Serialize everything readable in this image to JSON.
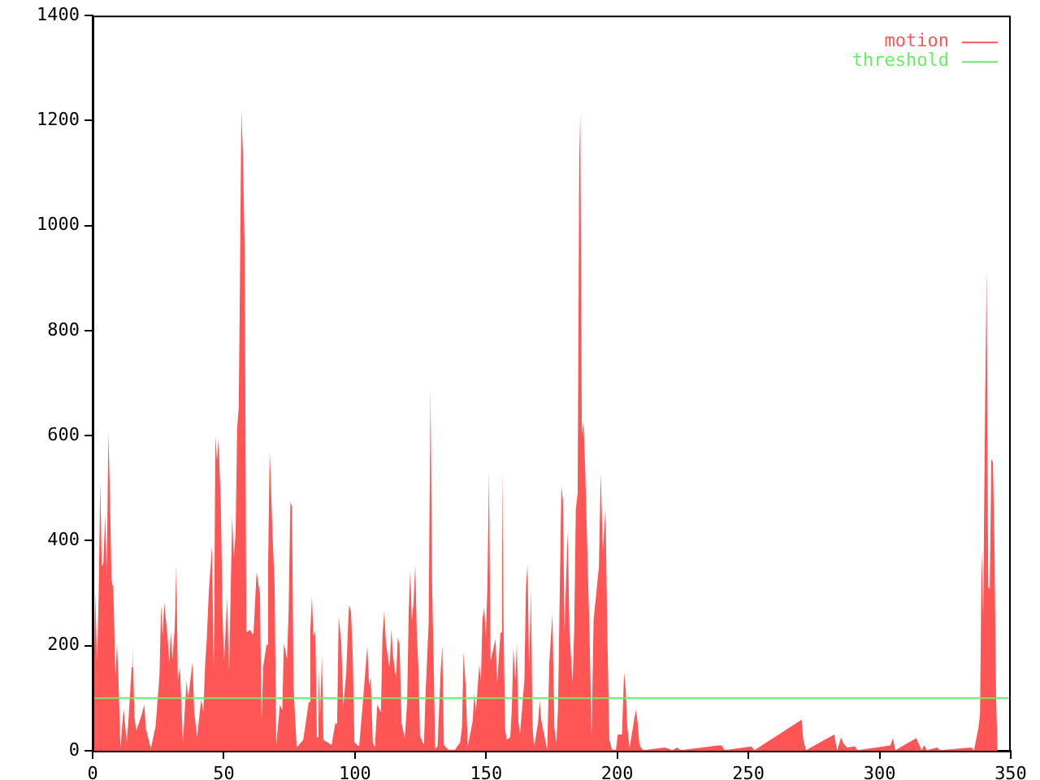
{
  "chart_data": {
    "type": "area",
    "xlim": [
      0,
      350
    ],
    "xticks": [
      0,
      50,
      100,
      150,
      200,
      250,
      300,
      350
    ],
    "ylim": [
      0,
      1400
    ],
    "yticks": [
      0,
      200,
      400,
      600,
      800,
      1000,
      1200,
      1400
    ],
    "grid": false,
    "legend": "top right",
    "marker": "none",
    "series": [
      {
        "name": "motion",
        "color": "#ff5555",
        "x": [
          0,
          1.0,
          1.7,
          2.3,
          2.9,
          3.5,
          4.1,
          4.8,
          5.4,
          6.0,
          6.6,
          7.2,
          7.9,
          8.7,
          9.3,
          9.9,
          10.6,
          11.8,
          13.0,
          13.7,
          14.9,
          15.3,
          15.9,
          16.6,
          18.6,
          19.7,
          20.3,
          22.2,
          24.0,
          25.5,
          26.1,
          26.7,
          27.3,
          28.6,
          29.2,
          29.8,
          30.4,
          31.3,
          31.9,
          32.5,
          33.3,
          34.4,
          35.8,
          36.4,
          38.1,
          38.7,
          39.8,
          41.4,
          42.2,
          42.9,
          43.5,
          44.3,
          45.5,
          46.2,
          46.8,
          47.4,
          48.0,
          48.9,
          49.5,
          50.1,
          51.3,
          52.0,
          53.2,
          53.8,
          54.5,
          55.1,
          55.7,
          56.1,
          56.7,
          57.3,
          58.0,
          58.6,
          60.0,
          61.3,
          62.5,
          63.8,
          64.4,
          65.0,
          66.3,
          66.9,
          67.5,
          68.7,
          69.4,
          70.0,
          71.4,
          72.3,
          72.9,
          74.1,
          74.7,
          75.4,
          76.0,
          76.6,
          77.8,
          80.3,
          82.4,
          83.0,
          83.6,
          84.2,
          84.9,
          85.5,
          86.1,
          86.7,
          87.4,
          88.0,
          91.1,
          92.5,
          93.2,
          93.8,
          94.8,
          95.6,
          96.7,
          97.7,
          98.5,
          99.2,
          99.8,
          101.6,
          102.9,
          104.1,
          104.7,
          105.4,
          106.0,
          106.8,
          107.6,
          108.5,
          109.9,
          110.5,
          111.2,
          111.8,
          113.2,
          113.9,
          114.5,
          115.7,
          116.3,
          117.0,
          117.8,
          119.0,
          119.9,
          120.5,
          121.1,
          121.7,
          122.3,
          123.0,
          123.6,
          124.2,
          124.8,
          126.3,
          126.9,
          128.1,
          128.8,
          129.4,
          130.0,
          130.6,
          131.5,
          132.7,
          133.3,
          133.9,
          135.6,
          138.1,
          140.1,
          140.8,
          141.4,
          142.2,
          143.0,
          144.9,
          145.5,
          146.1,
          147.4,
          148.0,
          148.6,
          149.3,
          149.9,
          150.5,
          151.1,
          151.7,
          153.6,
          154.2,
          155.5,
          156.1,
          156.7,
          157.3,
          157.9,
          159.2,
          159.8,
          160.4,
          161.1,
          161.7,
          162.3,
          162.9,
          164.6,
          165.2,
          165.8,
          166.4,
          167.1,
          167.7,
          168.3,
          169.8,
          170.4,
          171.0,
          173.3,
          174.1,
          175.3,
          176.0,
          176.8,
          177.4,
          178.0,
          178.7,
          179.3,
          179.9,
          180.5,
          181.1,
          181.8,
          183.0,
          183.6,
          184.2,
          184.9,
          185.5,
          185.9,
          186.5,
          187.1,
          187.8,
          188.5,
          189.4,
          190.2,
          191.0,
          192.0,
          193.0,
          193.7,
          194.5,
          195.5,
          196.3,
          197.0,
          198.0,
          199.5,
          200.2,
          201.8,
          202.6,
          203.2,
          203.8,
          204.7,
          205.9,
          206.5,
          207.2,
          207.8,
          208.4,
          209.0,
          209.9,
          218.1,
          221.2,
          222.7,
          224.3,
          238.4,
          239.9,
          240.9,
          251.1,
          252.3,
          270.3,
          270.9,
          272.0,
          282.7,
          283.8,
          285.4,
          286.0,
          287.5,
          290.6,
          291.6,
          304.1,
          305.1,
          306.0,
          314.0,
          316.0,
          317.0,
          318.0,
          322.0,
          323.0,
          335.0,
          336.0,
          337.7,
          338.3,
          338.9,
          339.5,
          340.1,
          340.8,
          341.4,
          342.0,
          342.6,
          343.2,
          343.8,
          344.4,
          345.0
        ],
        "values": [
          0,
          303,
          165,
          298,
          511,
          349,
          358,
          450,
          330,
          606,
          492,
          325,
          309,
          144,
          205,
          128,
          6,
          80,
          16,
          62,
          159,
          200,
          67,
          37,
          67,
          88,
          42,
          4,
          47,
          144,
          277,
          219,
          282,
          215,
          169,
          225,
          174,
          232,
          354,
          134,
          159,
          16,
          134,
          98,
          169,
          77,
          26,
          98,
          73,
          165,
          211,
          303,
          390,
          144,
          600,
          552,
          594,
          463,
          266,
          169,
          292,
          144,
          447,
          367,
          414,
          614,
          654,
          861,
          1219,
          1137,
          944,
          225,
          230,
          220,
          340,
          299,
          57,
          159,
          202,
          352,
          571,
          399,
          313,
          11,
          88,
          77,
          205,
          174,
          261,
          475,
          463,
          120,
          6,
          21,
          93,
          229,
          294,
          217,
          229,
          26,
          159,
          67,
          181,
          21,
          11,
          52,
          52,
          256,
          205,
          85,
          150,
          277,
          265,
          174,
          16,
          8,
          85,
          161,
          200,
          125,
          140,
          16,
          6,
          88,
          73,
          219,
          266,
          205,
          157,
          232,
          181,
          138,
          215,
          203,
          52,
          24,
          93,
          266,
          343,
          246,
          279,
          354,
          219,
          159,
          28,
          11,
          105,
          244,
          692,
          321,
          169,
          4,
          8,
          154,
          200,
          11,
          2,
          2,
          16,
          45,
          187,
          125,
          8,
          57,
          110,
          73,
          164,
          130,
          251,
          272,
          215,
          313,
          532,
          171,
          213,
          128,
          225,
          540,
          220,
          39,
          21,
          26,
          78,
          197,
          134,
          205,
          57,
          31,
          134,
          313,
          354,
          151,
          307,
          44,
          6,
          54,
          95,
          59,
          1,
          169,
          261,
          45,
          16,
          78,
          277,
          504,
          477,
          227,
          327,
          418,
          225,
          130,
          235,
          460,
          490,
          1127,
          1213,
          603,
          628,
          533,
          400,
          230,
          26,
          250,
          300,
          350,
          530,
          380,
          460,
          200,
          20,
          2,
          2,
          31,
          31,
          149,
          118,
          47,
          6,
          42,
          62,
          78,
          52,
          14,
          6,
          1,
          6,
          1,
          6,
          1,
          10,
          10,
          1,
          8,
          1,
          59,
          21,
          1,
          31,
          1,
          26,
          16,
          6,
          8,
          1,
          10,
          24,
          1,
          24,
          1,
          11,
          1,
          6,
          1,
          6,
          1,
          44,
          72,
          382,
          256,
          596,
          915,
          312,
          307,
          555,
          550,
          396,
          100,
          0
        ]
      },
      {
        "name": "threshold",
        "color": "#66ee66",
        "type": "line",
        "x": [
          0,
          350
        ],
        "values": [
          100,
          100
        ]
      }
    ]
  }
}
